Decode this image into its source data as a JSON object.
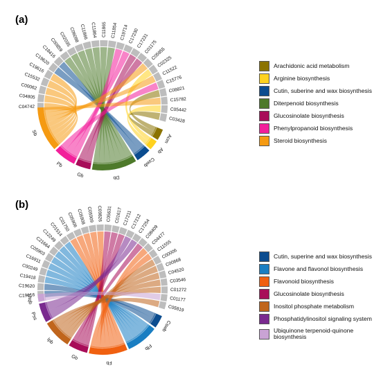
{
  "panels": [
    {
      "label": "(a)",
      "genes": [
        "C04742",
        "C04805",
        "C00062",
        "C15532",
        "C19616",
        "C19620",
        "C18416",
        "C00859",
        "C02035",
        "C06098",
        "C11866",
        "C11864",
        "C11865",
        "C11854",
        "C19714",
        "C17230",
        "C17231",
        "C01175",
        "C05955",
        "C02325",
        "C11522",
        "C15776",
        "C08821",
        "C15782",
        "C05442",
        "C03428"
      ],
      "pathways": [
        {
          "abbr": "Acm",
          "name": "Arachidonic acid metabolism",
          "color": "#8B7300",
          "w": 1.5
        },
        {
          "abbr": "Ab",
          "name": "Arginine biosynthesis",
          "color": "#FFD21F",
          "w": 1.3
        },
        {
          "abbr": "Cswb",
          "name": "Cutin, suberine and wax biosynthesis",
          "color": "#0B4C8F",
          "w": 2.0
        },
        {
          "abbr": "Db",
          "name": "Diterpenoid biosynthesis",
          "color": "#4E7A2B",
          "w": 6.0
        },
        {
          "abbr": "Gb",
          "name": "Glucosinolate biosynthesis",
          "color": "#A80D59",
          "w": 2.0
        },
        {
          "abbr": "Pb",
          "name": "Phenylpropanoid biosynthesis",
          "color": "#F21F9A",
          "w": 3.0
        },
        {
          "abbr": "Sb",
          "name": "Steroid biosynthesis",
          "color": "#F59A12",
          "w": 6.0
        }
      ],
      "links": [
        [
          0,
          6
        ],
        [
          1,
          6
        ],
        [
          2,
          6
        ],
        [
          3,
          6
        ],
        [
          4,
          6
        ],
        [
          5,
          2
        ],
        [
          6,
          2
        ],
        [
          7,
          3
        ],
        [
          8,
          3
        ],
        [
          9,
          3
        ],
        [
          10,
          3
        ],
        [
          11,
          3
        ],
        [
          12,
          3
        ],
        [
          13,
          3
        ],
        [
          14,
          5
        ],
        [
          15,
          5
        ],
        [
          16,
          4
        ],
        [
          17,
          4
        ],
        [
          18,
          6
        ],
        [
          19,
          1
        ],
        [
          20,
          6
        ],
        [
          21,
          5
        ],
        [
          22,
          0
        ],
        [
          23,
          6
        ],
        [
          24,
          1
        ],
        [
          25,
          0
        ]
      ]
    },
    {
      "label": "(b)",
      "genes": [
        "C19616",
        "C19620",
        "C19418",
        "C00249",
        "C16911",
        "C05903",
        "C21664",
        "C12249",
        "C01514",
        "C01750",
        "C05906",
        "C05908",
        "C05909",
        "C09826",
        "C05631",
        "C01617",
        "C17211",
        "C17212",
        "C17254",
        "C08409",
        "C04477",
        "C11555",
        "C00006",
        "C00668",
        "C04520",
        "C03546",
        "C01272",
        "C01177",
        "C05819"
      ],
      "pathways": [
        {
          "abbr": "Cswb",
          "name": "Cutin, superine and wax biosynthesis",
          "color": "#0B4C8F",
          "w": 2.0
        },
        {
          "abbr": "Ffb",
          "name": "Flavone and flavonol biosynthesis",
          "color": "#1A7EC2",
          "w": 5.0
        },
        {
          "abbr": "Fb",
          "name": "Flavonoid biosynthesis",
          "color": "#F06010",
          "w": 6.0
        },
        {
          "abbr": "Gb",
          "name": "Glucosinolate biosynthesis",
          "color": "#A80D59",
          "w": 3.0
        },
        {
          "abbr": "Ipb",
          "name": "Inositol phosphate metabolism",
          "color": "#C0651C",
          "w": 4.5
        },
        {
          "abbr": "Pss",
          "name": "Phosphatidylinositol signaling system",
          "color": "#7A2A8F",
          "w": 3.0
        },
        {
          "abbr": "Utqb",
          "name": "Ubiquinone terpenoid-quinone biosynthesis",
          "color": "#C9A3D4",
          "w": 1.2
        }
      ],
      "links": [
        [
          0,
          0
        ],
        [
          1,
          0
        ],
        [
          2,
          1
        ],
        [
          3,
          1
        ],
        [
          4,
          1
        ],
        [
          5,
          1
        ],
        [
          6,
          1
        ],
        [
          7,
          1
        ],
        [
          8,
          1
        ],
        [
          9,
          2
        ],
        [
          10,
          2
        ],
        [
          11,
          2
        ],
        [
          12,
          2
        ],
        [
          13,
          2
        ],
        [
          14,
          3
        ],
        [
          15,
          3
        ],
        [
          16,
          3
        ],
        [
          17,
          5
        ],
        [
          18,
          5
        ],
        [
          19,
          3
        ],
        [
          20,
          2
        ],
        [
          21,
          2
        ],
        [
          22,
          4
        ],
        [
          23,
          4
        ],
        [
          24,
          4
        ],
        [
          25,
          4
        ],
        [
          26,
          4
        ],
        [
          27,
          6
        ],
        [
          28,
          4
        ]
      ]
    }
  ]
}
